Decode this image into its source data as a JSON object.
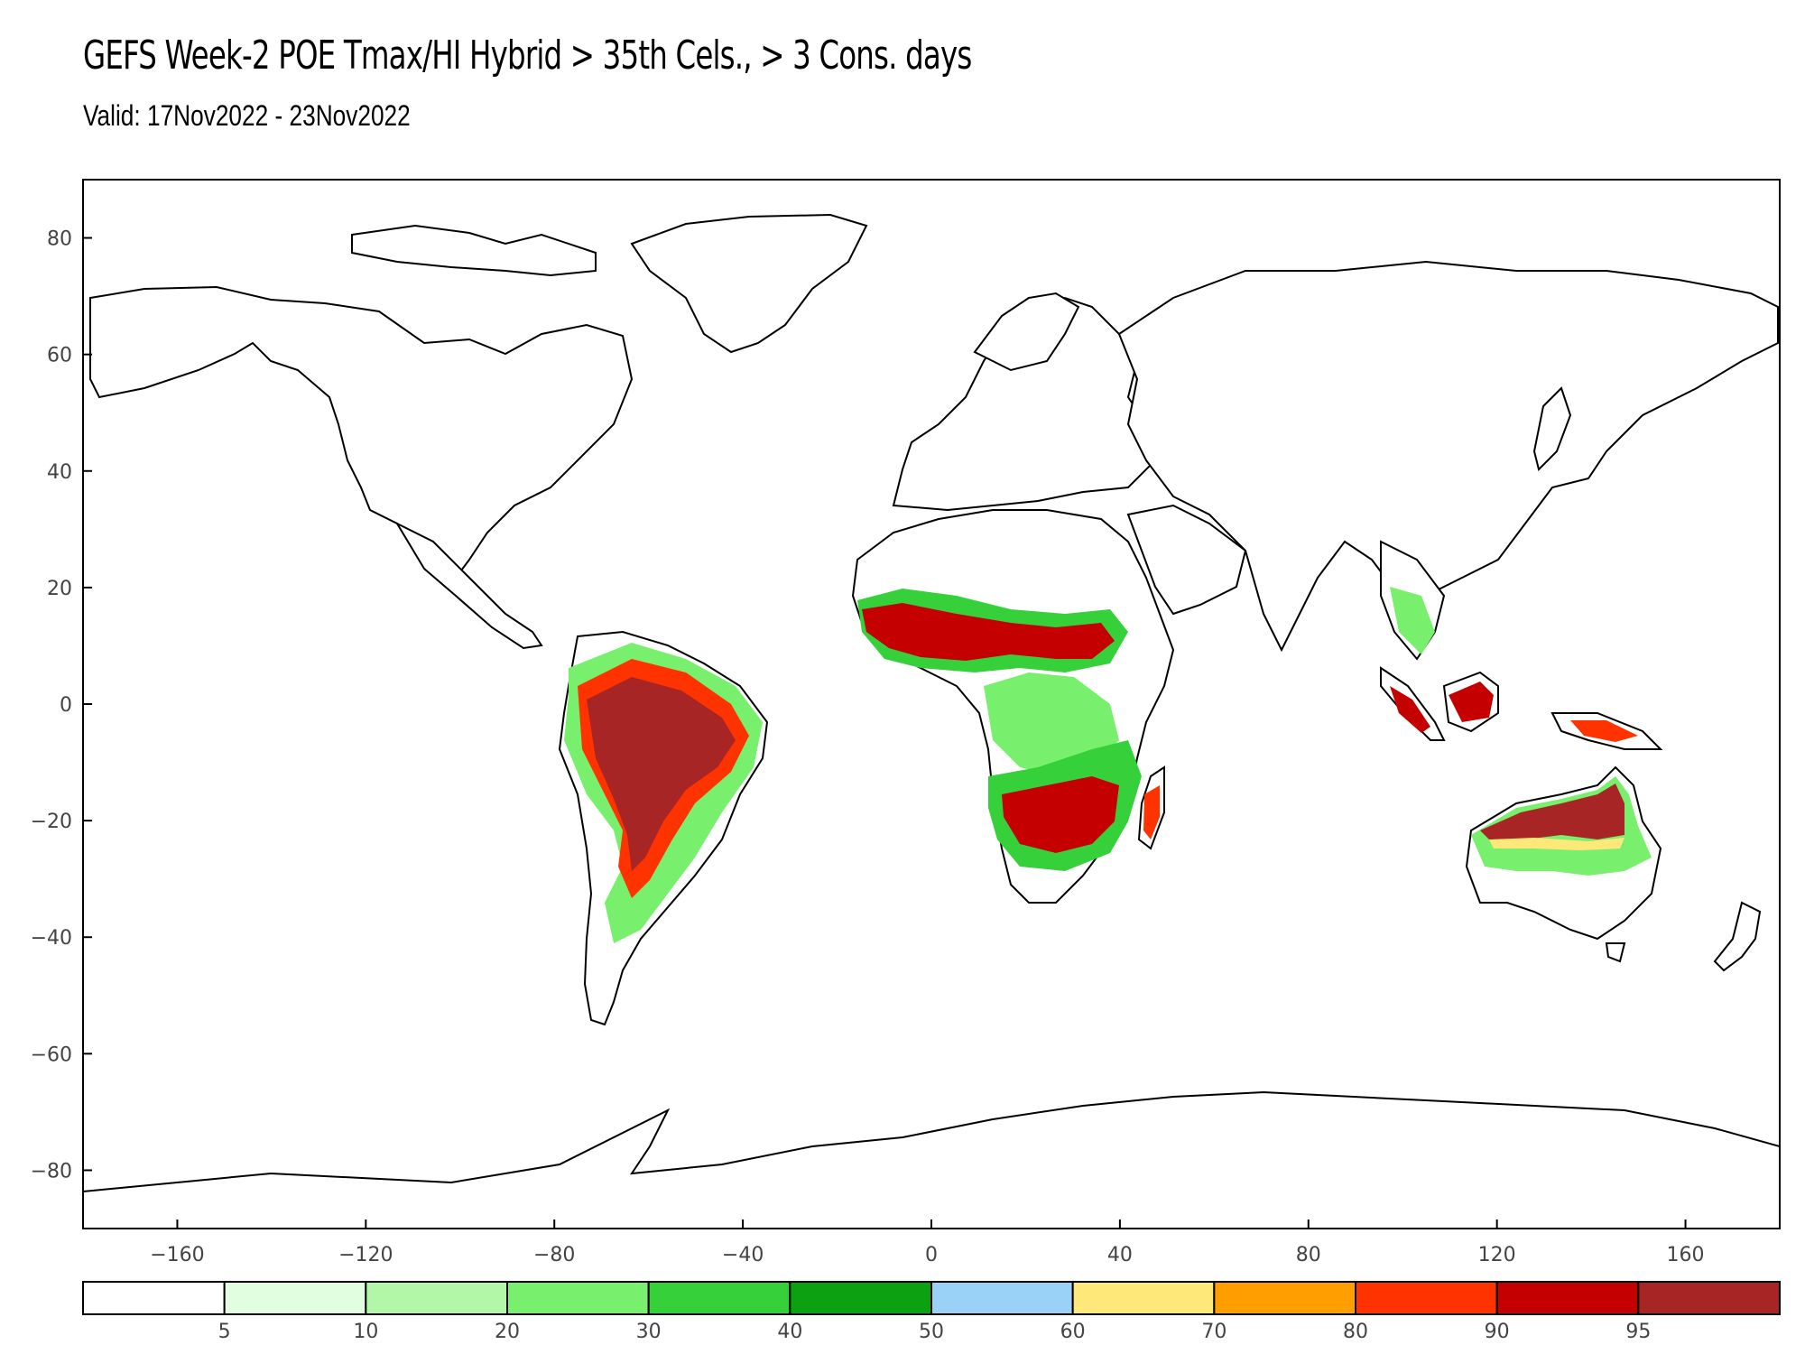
{
  "title": "GEFS Week-2 POE Tmax/HI Hybrid > 35th Cels., > 3 Cons. days",
  "subtitle": "Valid: 17Nov2022 - 23Nov2022",
  "map": {
    "x_ticks": [
      -160,
      -120,
      -80,
      -40,
      0,
      40,
      80,
      120,
      160
    ],
    "y_ticks": [
      80,
      60,
      40,
      20,
      0,
      -20,
      -40,
      -60,
      -80
    ],
    "xlim": [
      -180,
      180
    ],
    "ylim": [
      -90,
      90
    ]
  },
  "legend": {
    "colors": [
      "#ffffff",
      "#e1ffe0",
      "#b2f7a8",
      "#78f06e",
      "#36d13a",
      "#0ca110",
      "#99d1f7",
      "#ffe87a",
      "#ff9e00",
      "#ff3300",
      "#c40000",
      "#a82525"
    ],
    "labels": [
      "5",
      "10",
      "20",
      "30",
      "40",
      "50",
      "60",
      "70",
      "80",
      "90",
      "95"
    ]
  },
  "regions": [
    {
      "name": "amazon",
      "color": "#a82525",
      "level": "95+"
    },
    {
      "name": "sahel",
      "color": "#c40000",
      "level": "90-95"
    },
    {
      "name": "southern-africa",
      "color": "#c40000",
      "level": "90-95"
    },
    {
      "name": "north-australia",
      "color": "#a82525",
      "level": "95+"
    },
    {
      "name": "indonesia",
      "color": "#c40000",
      "level": "90-95"
    }
  ]
}
